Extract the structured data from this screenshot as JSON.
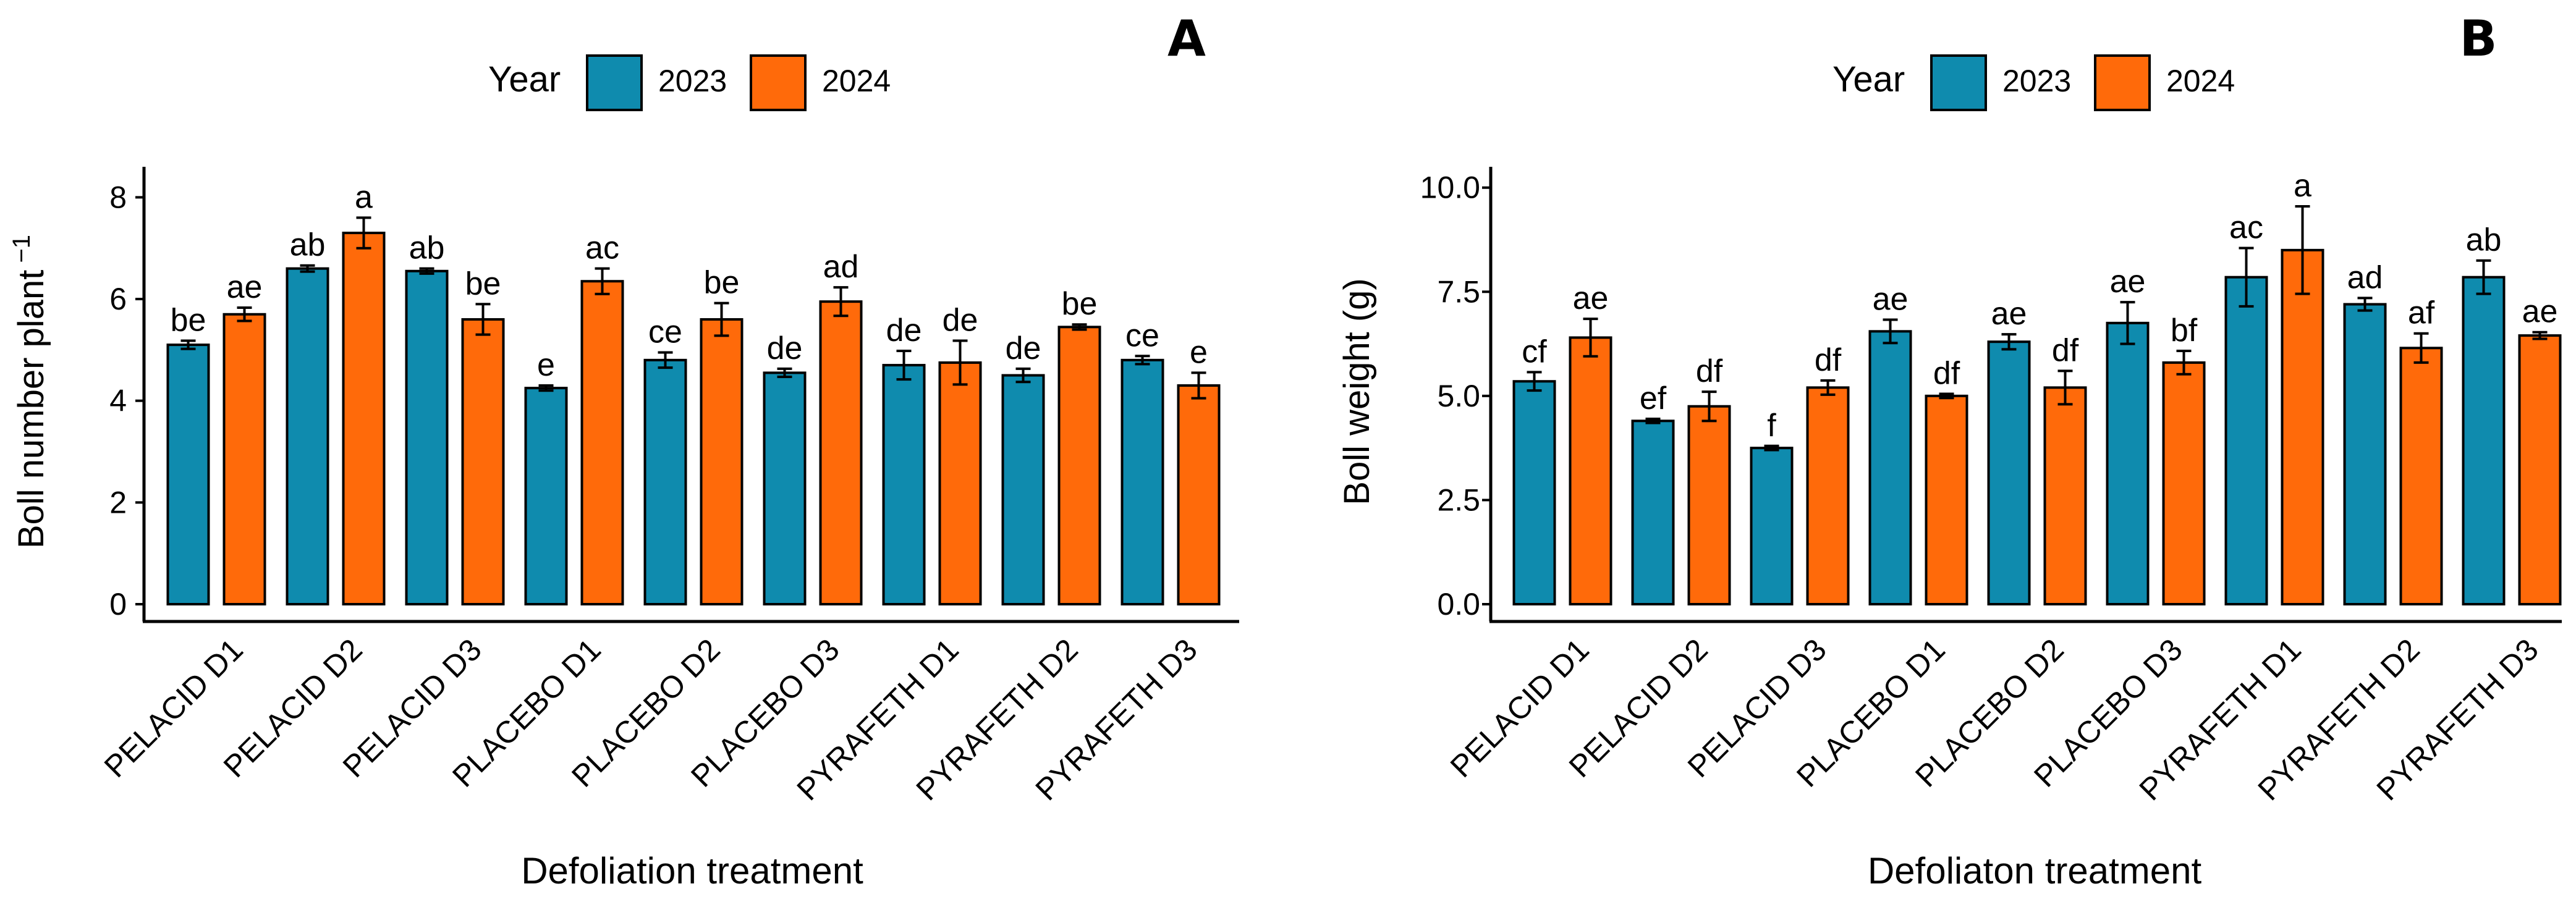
{
  "colors": {
    "2023": "#0F8BAE",
    "2024": "#FF6A0A"
  },
  "legend": {
    "title": "Year",
    "labels": [
      "2023",
      "2024"
    ]
  },
  "chart_data": [
    {
      "type": "bar",
      "panel": "A",
      "title": "",
      "xlabel": "Defoliation treatment",
      "ylabel": "Boll number plant",
      "ylabel_sup": "−1",
      "ylim": [
        0,
        8.6
      ],
      "yticks": [
        "0",
        "2",
        "4",
        "6",
        "8"
      ],
      "categories": [
        "PELACID D1",
        "PELACID D2",
        "PELACID D3",
        "PLACEBO D1",
        "PLACEBO D2",
        "PLACEBO D3",
        "PYRAFETH D1",
        "PYRAFETH D2",
        "PYRAFETH D3"
      ],
      "series": [
        {
          "name": "2023",
          "values": [
            5.1,
            6.6,
            6.55,
            4.25,
            4.8,
            4.55,
            4.7,
            4.5,
            4.8
          ],
          "errors": [
            0.08,
            0.06,
            0.05,
            0.05,
            0.15,
            0.08,
            0.28,
            0.13,
            0.08
          ],
          "letters": [
            "be",
            "ab",
            "ab",
            "e",
            "ce",
            "de",
            "de",
            "de",
            "ce"
          ]
        },
        {
          "name": "2024",
          "values": [
            5.7,
            7.3,
            5.6,
            6.35,
            5.6,
            5.95,
            4.75,
            5.45,
            4.3
          ],
          "errors": [
            0.13,
            0.3,
            0.3,
            0.25,
            0.32,
            0.28,
            0.43,
            0.05,
            0.25
          ],
          "letters": [
            "ae",
            "a",
            "be",
            "ac",
            "be",
            "ad",
            "de",
            "be",
            "e"
          ]
        }
      ]
    },
    {
      "type": "bar",
      "panel": "B",
      "title": "",
      "xlabel": "Defoliaton treatment",
      "ylabel": "Boll weight (g)",
      "ylabel_sup": "",
      "ylim": [
        0,
        10.5
      ],
      "yticks": [
        "0.0",
        "2.5",
        "5.0",
        "7.5",
        "10.0"
      ],
      "categories": [
        "PELACID D1",
        "PELACID D2",
        "PELACID D3",
        "PLACEBO D1",
        "PLACEBO D2",
        "PLACEBO D3",
        "PYRAFETH D1",
        "PYRAFETH D2",
        "PYRAFETH D3"
      ],
      "series": [
        {
          "name": "2023",
          "values": [
            5.35,
            4.4,
            3.75,
            6.55,
            6.3,
            6.75,
            7.85,
            7.2,
            7.85
          ],
          "errors": [
            0.22,
            0.05,
            0.05,
            0.28,
            0.18,
            0.5,
            0.7,
            0.15,
            0.4
          ],
          "letters": [
            "cf",
            "ef",
            "f",
            "ae",
            "ae",
            "ae",
            "ac",
            "ad",
            "ab"
          ]
        },
        {
          "name": "2024",
          "values": [
            6.4,
            4.75,
            5.2,
            5.0,
            5.2,
            5.8,
            8.5,
            6.15,
            6.45
          ],
          "errors": [
            0.45,
            0.35,
            0.17,
            0.05,
            0.4,
            0.28,
            1.05,
            0.35,
            0.08
          ],
          "letters": [
            "ae",
            "df",
            "df",
            "df",
            "df",
            "bf",
            "a",
            "af",
            "ae"
          ]
        }
      ]
    }
  ]
}
